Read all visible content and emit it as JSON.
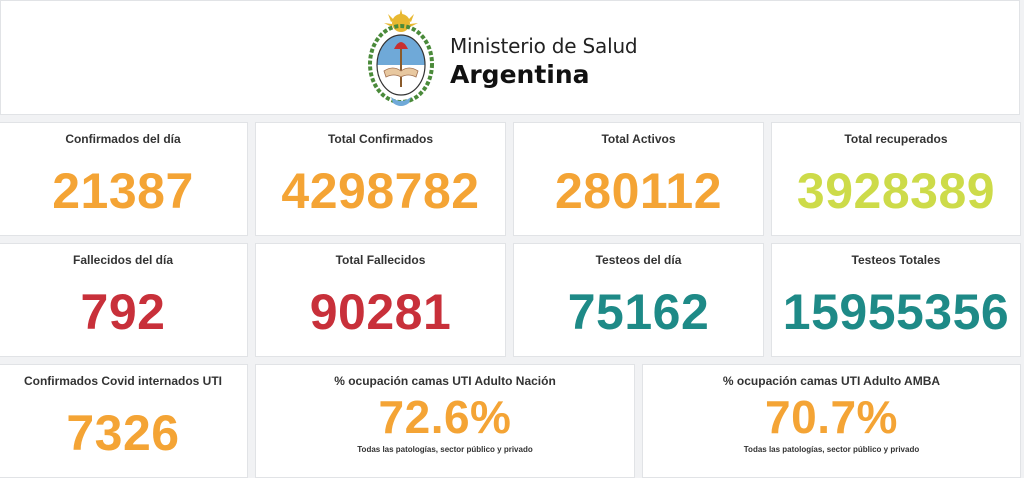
{
  "header": {
    "ministry": "Ministerio de Salud",
    "country": "Argentina",
    "logo_icon": "coat-of-arms-of-argentina"
  },
  "colors": {
    "orange": "#f4a435",
    "lime": "#cddb49",
    "red": "#c8303a",
    "teal": "#1e8a87"
  },
  "row1": [
    {
      "title": "Confirmados del día",
      "value": "21387"
    },
    {
      "title": "Total Confirmados",
      "value": "4298782"
    },
    {
      "title": "Total Activos",
      "value": "280112"
    },
    {
      "title": "Total recuperados",
      "value": "3928389"
    }
  ],
  "row2": [
    {
      "title": "Fallecidos del día",
      "value": "792"
    },
    {
      "title": "Total Fallecidos",
      "value": "90281"
    },
    {
      "title": "Testeos del día",
      "value": "75162"
    },
    {
      "title": "Testeos Totales",
      "value": "15955356"
    }
  ],
  "row3": [
    {
      "title": "Confirmados Covid internados UTI",
      "value": "7326"
    },
    {
      "title": "% ocupación camas UTI Adulto Nación",
      "value": "72.6%",
      "sub": "Todas las patologías, sector público y privado"
    },
    {
      "title": "% ocupación camas UTI Adulto AMBA",
      "value": "70.7%",
      "sub": "Todas las patologías, sector público y privado"
    }
  ]
}
